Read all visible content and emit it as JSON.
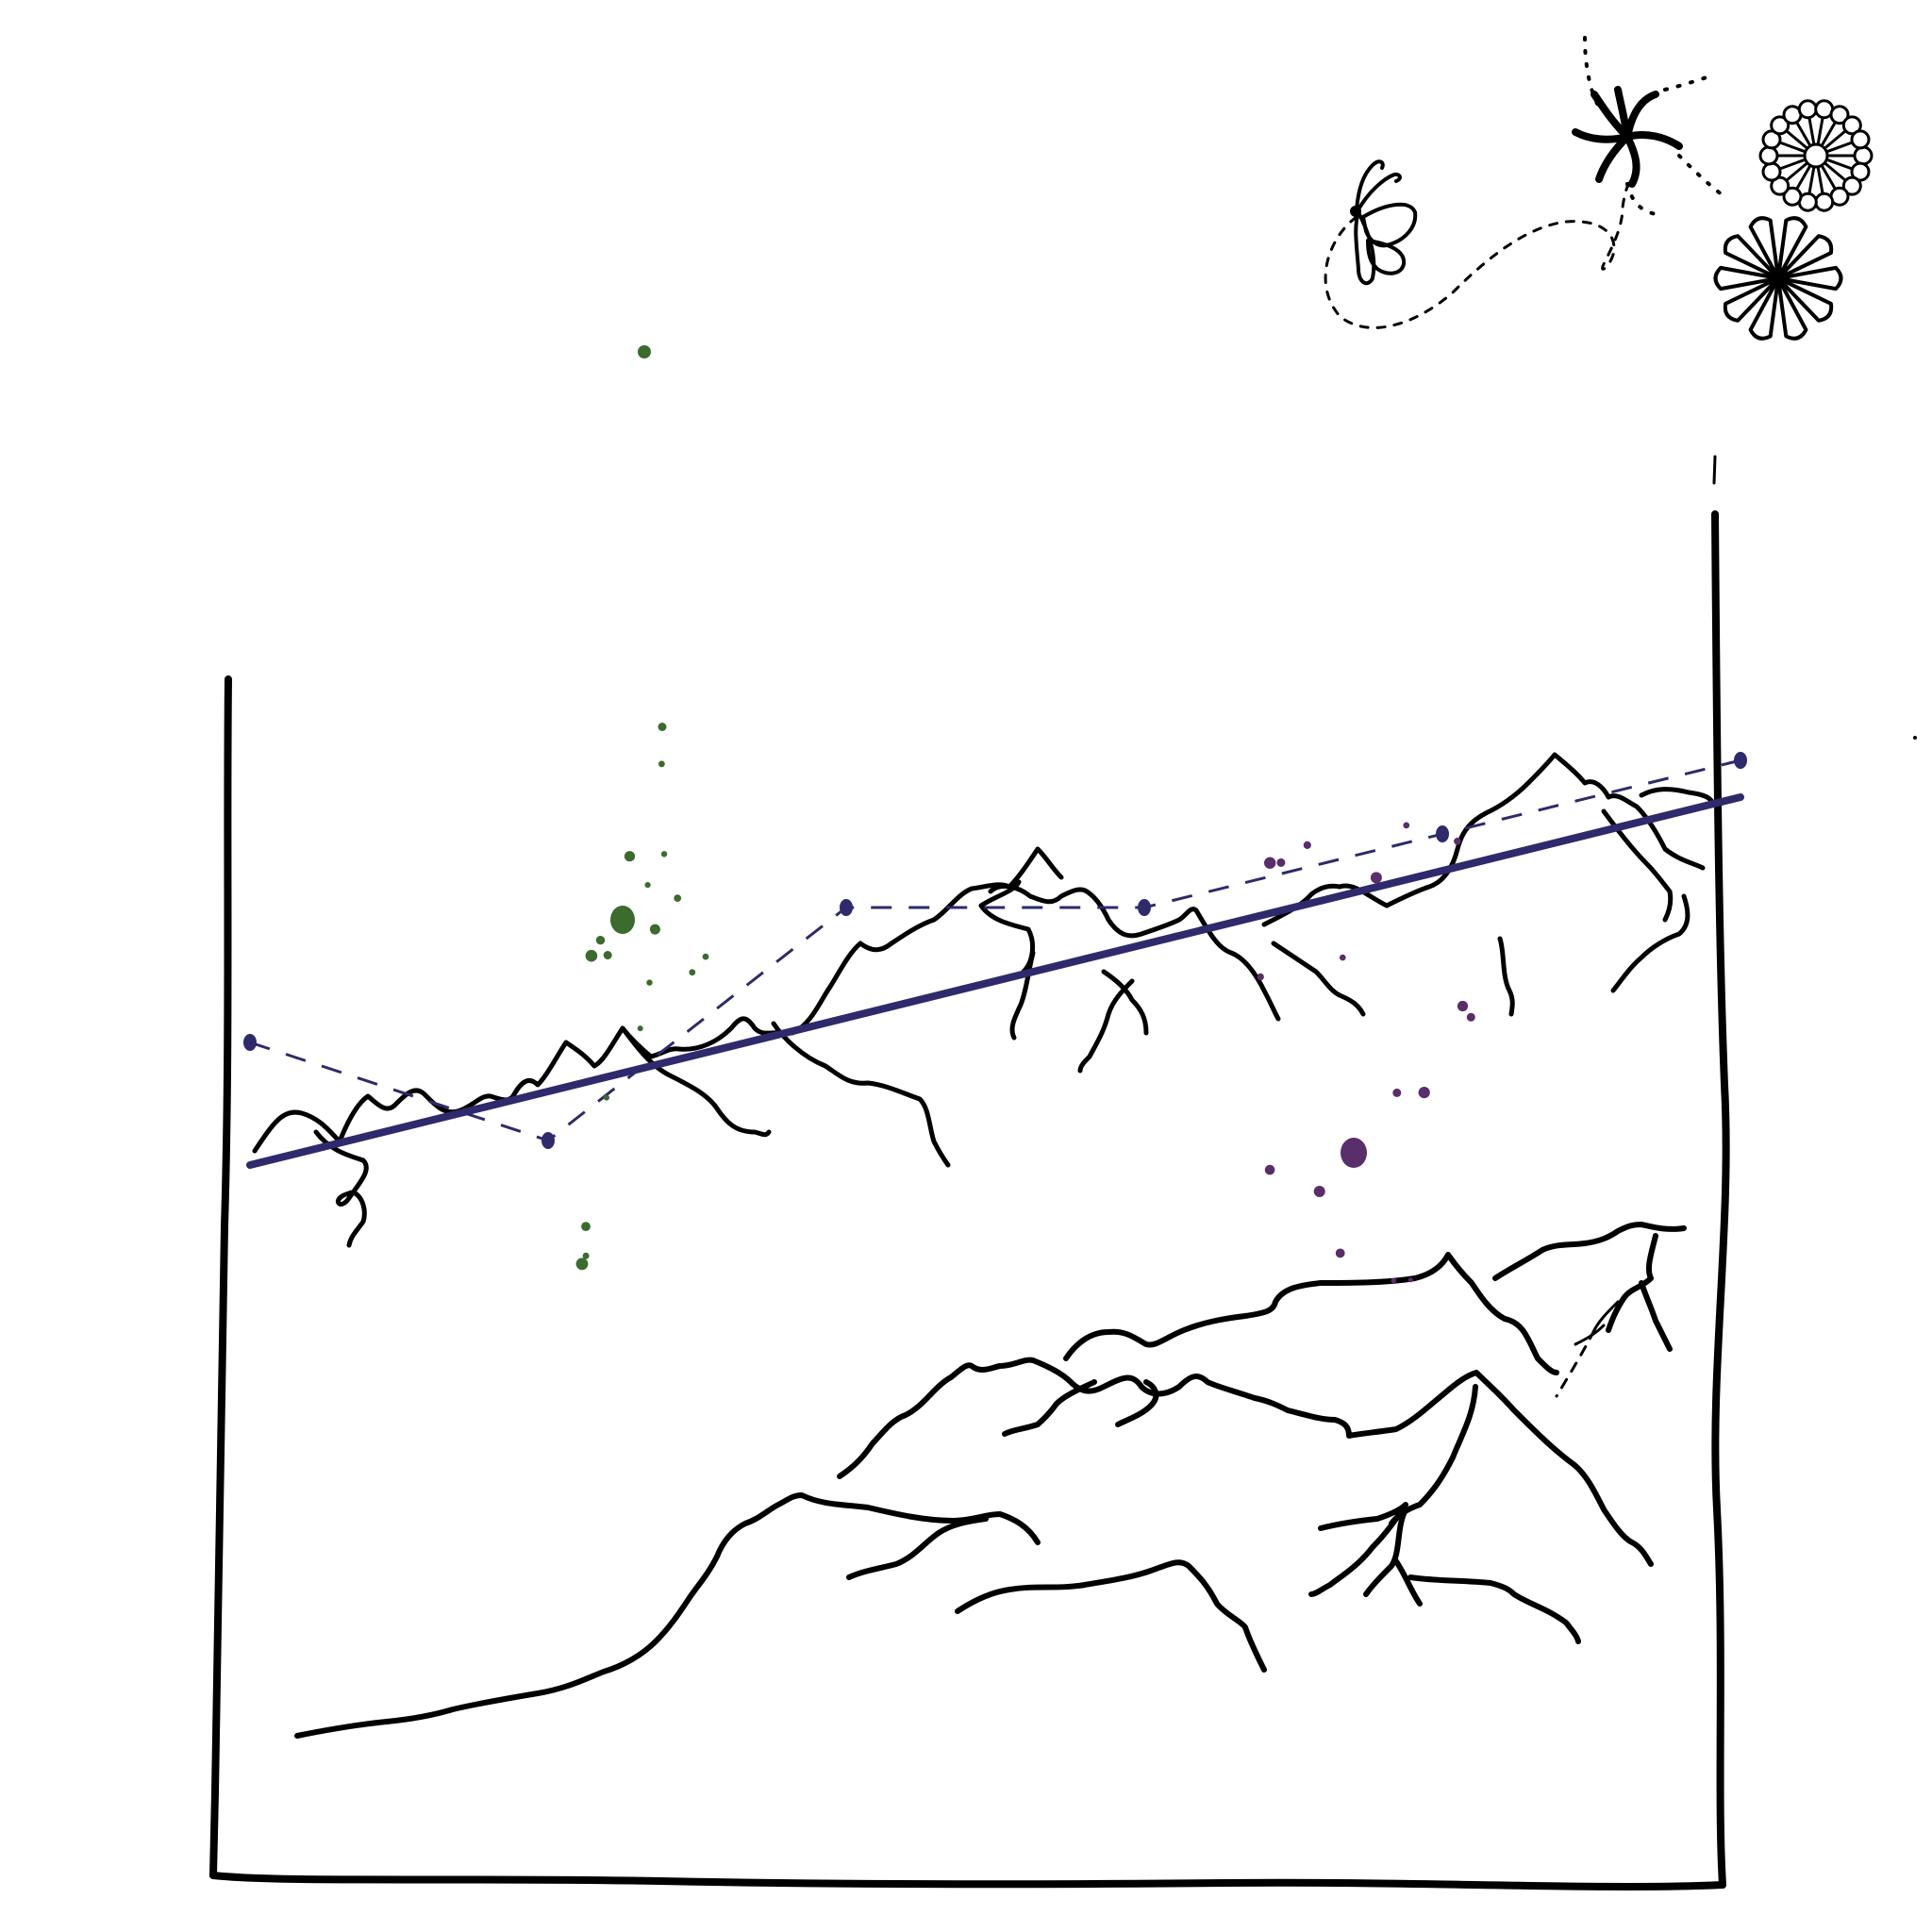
{
  "colors": {
    "ink": "#000000",
    "line": "#2e2a6b",
    "green_dots": "#3b6b2d",
    "purple_dots": "#5a2d6b",
    "background": "#ffffff"
  },
  "icons": {
    "butterfly": "butterfly-icon",
    "flower_small": "spiral-flower-icon",
    "flower_outline": "daisy-icon",
    "flower_filled": "petal-flower-icon"
  },
  "chart_data": {
    "type": "scatter",
    "x": [
      0.0,
      0.2,
      0.4,
      0.6,
      0.8,
      1.0
    ],
    "series": [
      {
        "values": [
          0.0,
          0.06,
          0.12,
          0.18,
          0.24,
          0.3
        ]
      },
      {
        "values": [
          0.1,
          0.02,
          0.21,
          0.21,
          0.27,
          0.33
        ]
      }
    ],
    "scatter_groups": [
      {
        "name": "",
        "points": 18
      },
      {
        "name": "",
        "points": 17
      }
    ]
  }
}
